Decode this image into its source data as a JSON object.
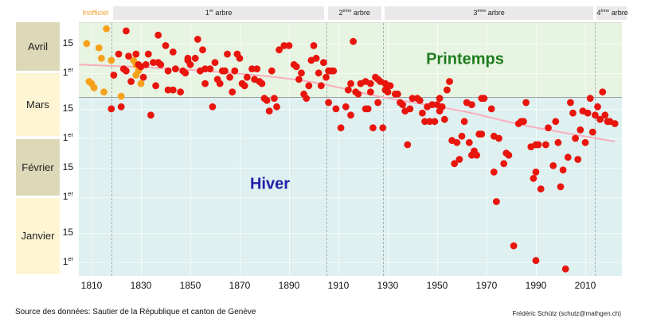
{
  "ui": {
    "header": {
      "inofficiel": "Inofficiel",
      "periods": [
        {
          "num": "1",
          "sup": "er",
          "word": "arbre",
          "year_from": 1818,
          "year_to": 1905
        },
        {
          "num": "2",
          "sup": "ème",
          "word": "arbre",
          "year_from": 1905,
          "year_to": 1928
        },
        {
          "num": "3",
          "sup": "ème",
          "word": "arbre",
          "year_from": 1928,
          "year_to": 2014
        },
        {
          "num": "4",
          "sup": "ème",
          "word": "arbre",
          "year_from": 2014,
          "year_to": 2025
        }
      ],
      "inofficiel_year_from": 1805,
      "inofficiel_year_to": 1818
    },
    "months": [
      {
        "name": "Avril",
        "d_from": 91,
        "d_to": 121,
        "shade": "dark"
      },
      {
        "name": "Mars",
        "d_from": 60,
        "d_to": 91,
        "shade": "light"
      },
      {
        "name": "Février",
        "d_from": 32,
        "d_to": 60,
        "shade": "dark"
      },
      {
        "name": "Janvier",
        "d_from": -6,
        "d_to": 32,
        "shade": "light"
      }
    ],
    "footer": {
      "source": "Source des données: Sautier de la République et canton de Genève",
      "credit": "Frédéric Schütz (schutz@mathgen.ch)"
    },
    "colors": {
      "box_dark": "#dcd8b8",
      "box_light": "#fdf5d3",
      "band_bg": "#e9e9e9",
      "inofficiel_text": "#f0a030",
      "zone_green": "#e7f4e2",
      "zone_blue": "#def0f0",
      "spring_text": "#1e7d1e",
      "winter_text": "#2121a8",
      "point_red": "#e8150d",
      "point_orange": "#f7a01b",
      "trend": "#f8aebc",
      "equinox_line": "#9aa3a3",
      "dashed_line": "#a9b1b1"
    }
  },
  "chart_data": {
    "type": "scatter",
    "title": "",
    "x": {
      "label": "",
      "ticks": [
        1810,
        1830,
        1850,
        1870,
        1890,
        1910,
        1930,
        1950,
        1970,
        1990,
        2010
      ],
      "range": [
        1805,
        2025
      ]
    },
    "y": {
      "unit": "day_of_year (Jan 1 = 1)",
      "range": [
        -6,
        115
      ],
      "ticks": [
        {
          "d": 105,
          "t": "15"
        },
        {
          "d": 91,
          "t": "1",
          "sup": "er"
        },
        {
          "d": 74,
          "t": "15"
        },
        {
          "d": 60,
          "t": "1",
          "sup": "er"
        },
        {
          "d": 46,
          "t": "15"
        },
        {
          "d": 32,
          "t": "1",
          "sup": "er"
        },
        {
          "d": 15,
          "t": "15"
        },
        {
          "d": 1,
          "t": "1",
          "sup": "er"
        }
      ]
    },
    "annotations": {
      "spring": "Printemps",
      "winter": "Hiver"
    },
    "boundaries": {
      "equinox_day": 79,
      "tree_change_years": [
        1818,
        1905,
        1928,
        2014
      ]
    },
    "trend_line": {
      "points": [
        [
          1805,
          95
        ],
        [
          1850,
          92.5
        ],
        [
          1895,
          87.5
        ],
        [
          1928,
          79.5
        ],
        [
          1960,
          73
        ],
        [
          1986,
          66
        ],
        [
          2022,
          58.5
        ]
      ]
    },
    "series": [
      {
        "name": "inofficiel",
        "color": "#f7a01b",
        "points": [
          [
            1808,
            105
          ],
          [
            1813,
            103
          ],
          [
            1814,
            98
          ],
          [
            1816,
            112
          ],
          [
            1818,
            97
          ],
          [
            1809,
            87
          ],
          [
            1810,
            86
          ],
          [
            1811,
            84
          ],
          [
            1815,
            82
          ],
          [
            1822,
            80
          ],
          [
            1827,
            97
          ],
          [
            1828,
            95
          ],
          [
            1829,
            92
          ],
          [
            1828,
            90
          ],
          [
            1830,
            86
          ]
        ]
      },
      {
        "name": "officiel",
        "color": "#e8150d",
        "points": [
          [
            1818,
            74
          ],
          [
            1819,
            90
          ],
          [
            1821,
            100
          ],
          [
            1822,
            75
          ],
          [
            1823,
            93
          ],
          [
            1824,
            111
          ],
          [
            1824,
            92
          ],
          [
            1825,
            99
          ],
          [
            1826,
            87
          ],
          [
            1828,
            100
          ],
          [
            1829,
            95
          ],
          [
            1830,
            94
          ],
          [
            1831,
            89
          ],
          [
            1832,
            95
          ],
          [
            1833,
            100
          ],
          [
            1834,
            71
          ],
          [
            1835,
            96
          ],
          [
            1836,
            85
          ],
          [
            1837,
            109
          ],
          [
            1837,
            96
          ],
          [
            1838,
            95
          ],
          [
            1840,
            104
          ],
          [
            1841,
            92
          ],
          [
            1841,
            83
          ],
          [
            1843,
            101
          ],
          [
            1843,
            83
          ],
          [
            1844,
            93
          ],
          [
            1846,
            82
          ],
          [
            1847,
            92
          ],
          [
            1848,
            91
          ],
          [
            1849,
            97
          ],
          [
            1849,
            98
          ],
          [
            1850,
            95
          ],
          [
            1853,
            107
          ],
          [
            1855,
            102
          ],
          [
            1852,
            98
          ],
          [
            1854,
            92
          ],
          [
            1856,
            93
          ],
          [
            1856,
            86
          ],
          [
            1858,
            93
          ],
          [
            1859,
            75
          ],
          [
            1860,
            96
          ],
          [
            1861,
            88
          ],
          [
            1862,
            86
          ],
          [
            1863,
            92
          ],
          [
            1864,
            92
          ],
          [
            1865,
            100
          ],
          [
            1866,
            89
          ],
          [
            1867,
            82
          ],
          [
            1868,
            92
          ],
          [
            1869,
            100
          ],
          [
            1870,
            98
          ],
          [
            1871,
            86
          ],
          [
            1872,
            85
          ],
          [
            1873,
            89
          ],
          [
            1875,
            93
          ],
          [
            1876,
            88
          ],
          [
            1877,
            93
          ],
          [
            1878,
            87
          ],
          [
            1879,
            86
          ],
          [
            1880,
            79
          ],
          [
            1881,
            78
          ],
          [
            1882,
            73
          ],
          [
            1883,
            92
          ],
          [
            1884,
            79
          ],
          [
            1885,
            75
          ],
          [
            1886,
            102
          ],
          [
            1888,
            104
          ],
          [
            1890,
            104
          ],
          [
            1892,
            95
          ],
          [
            1893,
            94
          ],
          [
            1894,
            88
          ],
          [
            1895,
            91
          ],
          [
            1896,
            81
          ],
          [
            1897,
            79
          ],
          [
            1898,
            85
          ],
          [
            1899,
            97
          ],
          [
            1900,
            104
          ],
          [
            1901,
            98
          ],
          [
            1902,
            91
          ],
          [
            1903,
            85
          ],
          [
            1904,
            96
          ],
          [
            1905,
            89
          ],
          [
            1906,
            92
          ],
          [
            1906,
            77
          ],
          [
            1907,
            92
          ],
          [
            1908,
            92
          ],
          [
            1909,
            74
          ],
          [
            1911,
            65
          ],
          [
            1913,
            75
          ],
          [
            1914,
            83
          ],
          [
            1915,
            86
          ],
          [
            1915,
            71
          ],
          [
            1916,
            106
          ],
          [
            1917,
            82
          ],
          [
            1918,
            81
          ],
          [
            1919,
            86
          ],
          [
            1921,
            87
          ],
          [
            1921,
            74
          ],
          [
            1922,
            74
          ],
          [
            1923,
            82
          ],
          [
            1923,
            86
          ],
          [
            1924,
            65
          ],
          [
            1925,
            89
          ],
          [
            1926,
            88
          ],
          [
            1926,
            77
          ],
          [
            1927,
            87
          ],
          [
            1928,
            65
          ],
          [
            1929,
            86
          ],
          [
            1929,
            83
          ],
          [
            1930,
            85
          ],
          [
            1930,
            82
          ],
          [
            1931,
            85
          ],
          [
            1933,
            81
          ],
          [
            1934,
            81
          ],
          [
            1935,
            77
          ],
          [
            1936,
            76
          ],
          [
            1937,
            73
          ],
          [
            1938,
            57
          ],
          [
            1939,
            74
          ],
          [
            1940,
            79
          ],
          [
            1942,
            79
          ],
          [
            1943,
            78
          ],
          [
            1944,
            72
          ],
          [
            1945,
            68
          ],
          [
            1946,
            75
          ],
          [
            1947,
            68
          ],
          [
            1948,
            76
          ],
          [
            1949,
            68
          ],
          [
            1950,
            76
          ],
          [
            1951,
            79
          ],
          [
            1951,
            73
          ],
          [
            1952,
            75
          ],
          [
            1953,
            69
          ],
          [
            1954,
            83
          ],
          [
            1955,
            87
          ],
          [
            1956,
            59
          ],
          [
            1957,
            48
          ],
          [
            1958,
            58
          ],
          [
            1959,
            50
          ],
          [
            1960,
            61
          ],
          [
            1961,
            68
          ],
          [
            1962,
            77
          ],
          [
            1963,
            58
          ],
          [
            1964,
            76
          ],
          [
            1964,
            52
          ],
          [
            1965,
            54
          ],
          [
            1966,
            52
          ],
          [
            1967,
            62
          ],
          [
            1968,
            79
          ],
          [
            1968,
            62
          ],
          [
            1969,
            79
          ],
          [
            1972,
            74
          ],
          [
            1973,
            61
          ],
          [
            1973,
            44
          ],
          [
            1974,
            30
          ],
          [
            1975,
            60
          ],
          [
            1977,
            48
          ],
          [
            1978,
            53
          ],
          [
            1979,
            52
          ],
          [
            1981,
            9
          ],
          [
            1983,
            67
          ],
          [
            1984,
            68
          ],
          [
            1985,
            68
          ],
          [
            1986,
            77
          ],
          [
            1988,
            56
          ],
          [
            1989,
            41
          ],
          [
            1990,
            57
          ],
          [
            1990,
            44
          ],
          [
            1990,
            2
          ],
          [
            1991,
            57
          ],
          [
            1992,
            36
          ],
          [
            1994,
            57
          ],
          [
            1995,
            65
          ],
          [
            1997,
            47
          ],
          [
            1998,
            68
          ],
          [
            1999,
            58
          ],
          [
            2000,
            37
          ],
          [
            2001,
            45
          ],
          [
            2002,
            -2
          ],
          [
            2003,
            51
          ],
          [
            2004,
            77
          ],
          [
            2005,
            72
          ],
          [
            2006,
            60
          ],
          [
            2007,
            50
          ],
          [
            2008,
            64
          ],
          [
            2009,
            73
          ],
          [
            2010,
            58
          ],
          [
            2011,
            72
          ],
          [
            2012,
            79
          ],
          [
            2013,
            63
          ],
          [
            2014,
            71
          ],
          [
            2015,
            75
          ],
          [
            2016,
            69
          ],
          [
            2017,
            82
          ],
          [
            2018,
            71
          ],
          [
            2019,
            68
          ],
          [
            2020,
            68
          ],
          [
            2022,
            67
          ]
        ]
      }
    ]
  }
}
